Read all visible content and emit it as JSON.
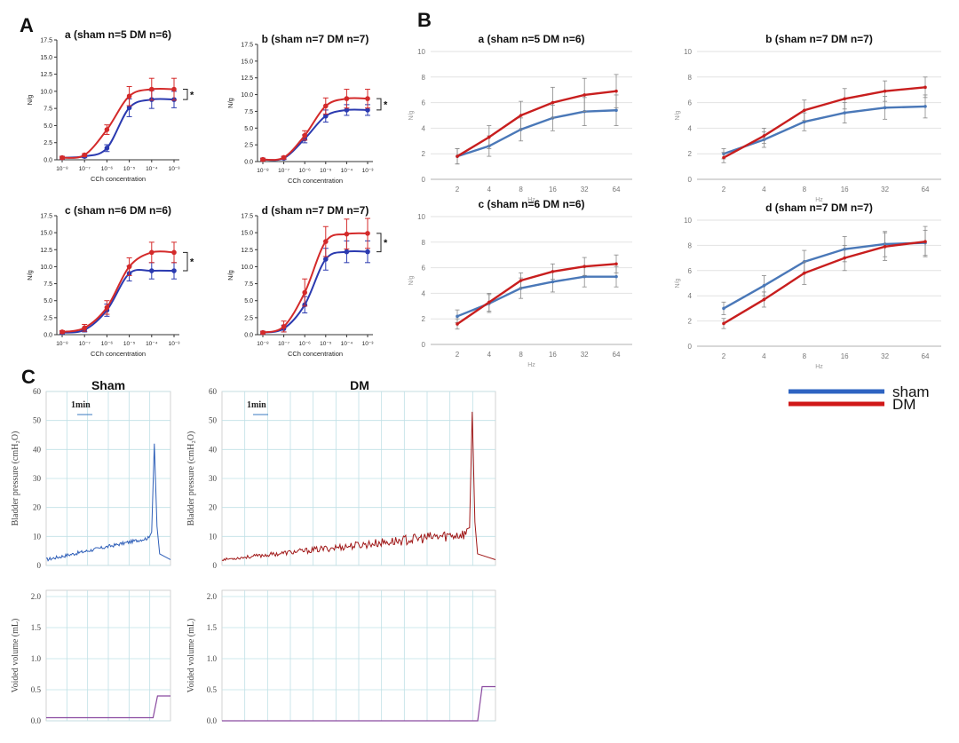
{
  "panel_letters": [
    "A",
    "B",
    "C"
  ],
  "colors": {
    "sham": "#2b3ab0",
    "dm": "#d42a2a",
    "sham_B": "#4a78b8",
    "dm_B": "#c81e1e",
    "trace_sham": "#2f5fb8",
    "trace_dm": "#a01818",
    "grid_C": "#bfe0e6"
  },
  "chart_data": [
    {
      "type": "line",
      "panel": "A",
      "id": "a",
      "title": "a  (sham n=5 DM n=6)",
      "xlabel": "CCh concentration",
      "ylabel": "N/g",
      "categories": [
        "10⁻⁸",
        "10⁻⁷",
        "10⁻⁶",
        "10⁻⁵",
        "10⁻⁴",
        "10⁻³"
      ],
      "ylim": [
        0,
        17.5
      ],
      "yticks": [
        "0.0",
        "2.5",
        "5.0",
        "7.5",
        "10.0",
        "12.5",
        "15.0",
        "17.5"
      ],
      "series": [
        {
          "name": "sham",
          "values": [
            0.3,
            0.5,
            1.7,
            7.6,
            8.8,
            8.8
          ],
          "err": [
            0.2,
            0.2,
            0.5,
            1.3,
            1.3,
            1.2
          ]
        },
        {
          "name": "DM",
          "values": [
            0.3,
            0.7,
            4.4,
            9.3,
            10.3,
            10.3
          ],
          "err": [
            0.2,
            0.2,
            0.7,
            1.4,
            1.6,
            1.6
          ]
        }
      ],
      "annotation": "*"
    },
    {
      "type": "line",
      "panel": "A",
      "id": "b",
      "title": "b (sham n=7 DM n=7)",
      "xlabel": "CCh concentration",
      "ylabel": "N/g",
      "categories": [
        "10⁻⁸",
        "10⁻⁷",
        "10⁻⁶",
        "10⁻⁵",
        "10⁻⁴",
        "10⁻³"
      ],
      "ylim": [
        0,
        17.5
      ],
      "yticks": [
        "0.0",
        "2.5",
        "5.0",
        "7.5",
        "10.0",
        "12.5",
        "15.0",
        "17.5"
      ],
      "series": [
        {
          "name": "sham",
          "values": [
            0.3,
            0.5,
            3.4,
            6.8,
            7.7,
            7.7
          ],
          "err": [
            0.2,
            0.2,
            0.6,
            0.9,
            0.8,
            0.8
          ]
        },
        {
          "name": "DM",
          "values": [
            0.3,
            0.6,
            3.9,
            8.3,
            9.4,
            9.4
          ],
          "err": [
            0.2,
            0.2,
            0.7,
            1.2,
            1.4,
            1.4
          ]
        }
      ],
      "annotation": "*"
    },
    {
      "type": "line",
      "panel": "A",
      "id": "c",
      "title": "c  (sham n=6 DM n=6)",
      "xlabel": "CCh concentration",
      "ylabel": "N/g",
      "categories": [
        "10⁻⁸",
        "10⁻⁷",
        "10⁻⁶",
        "10⁻⁵",
        "10⁻⁴",
        "10⁻³"
      ],
      "ylim": [
        0,
        17.5
      ],
      "yticks": [
        "0.0",
        "2.5",
        "5.0",
        "7.5",
        "10.0",
        "12.5",
        "15.0",
        "17.5"
      ],
      "series": [
        {
          "name": "sham",
          "values": [
            0.3,
            0.7,
            3.6,
            9.0,
            9.4,
            9.4
          ],
          "err": [
            0.2,
            0.3,
            0.9,
            1.1,
            1.2,
            1.2
          ]
        },
        {
          "name": "DM",
          "values": [
            0.4,
            1.0,
            4.0,
            10.0,
            12.1,
            12.1
          ],
          "err": [
            0.2,
            0.5,
            1.0,
            1.3,
            1.5,
            1.5
          ]
        }
      ],
      "annotation": "*"
    },
    {
      "type": "line",
      "panel": "A",
      "id": "d",
      "title": "d (sham n=7 DM n=7)",
      "xlabel": "CCh concentration",
      "ylabel": "N/g",
      "categories": [
        "10⁻⁸",
        "10⁻⁷",
        "10⁻⁶",
        "10⁻⁵",
        "10⁻⁴",
        "10⁻³"
      ],
      "ylim": [
        0,
        17.5
      ],
      "yticks": [
        "0.0",
        "2.5",
        "5.0",
        "7.5",
        "10.0",
        "12.5",
        "15.0",
        "17.5"
      ],
      "series": [
        {
          "name": "sham",
          "values": [
            0.3,
            0.9,
            4.4,
            11.1,
            12.2,
            12.2
          ],
          "err": [
            0.2,
            0.5,
            1.2,
            1.6,
            1.6,
            1.6
          ]
        },
        {
          "name": "DM",
          "values": [
            0.3,
            1.2,
            6.2,
            13.7,
            14.8,
            14.9
          ],
          "err": [
            0.2,
            0.8,
            2.0,
            2.2,
            2.2,
            2.2
          ]
        }
      ],
      "annotation": "*"
    },
    {
      "type": "line",
      "panel": "B",
      "id": "a",
      "title": "a (sham n=5 DM n=6)",
      "xlabel": "Hz",
      "ylabel": "N/g",
      "categories": [
        "2",
        "4",
        "8",
        "16",
        "32",
        "64"
      ],
      "ylim": [
        0,
        10
      ],
      "yticks": [
        "0",
        "2",
        "4",
        "6",
        "8",
        "10"
      ],
      "series": [
        {
          "name": "sham",
          "values": [
            1.8,
            2.6,
            3.9,
            4.8,
            5.3,
            5.4
          ],
          "err": [
            0.6,
            0.8,
            0.9,
            1.0,
            1.1,
            1.2
          ]
        },
        {
          "name": "DM",
          "values": [
            1.8,
            3.3,
            5.0,
            6.0,
            6.6,
            6.9
          ],
          "err": [
            0.6,
            0.9,
            1.1,
            1.2,
            1.3,
            1.3
          ]
        }
      ]
    },
    {
      "type": "line",
      "panel": "B",
      "id": "b",
      "title": "b (sham n=7 DM n=7)",
      "xlabel": "Hz",
      "ylabel": "N/g",
      "categories": [
        "2",
        "4",
        "8",
        "16",
        "32",
        "64"
      ],
      "ylim": [
        0,
        10
      ],
      "yticks": [
        "0",
        "2",
        "4",
        "6",
        "8",
        "10"
      ],
      "series": [
        {
          "name": "sham",
          "values": [
            2.0,
            3.1,
            4.5,
            5.2,
            5.6,
            5.7
          ],
          "err": [
            0.4,
            0.6,
            0.7,
            0.8,
            0.9,
            0.9
          ]
        },
        {
          "name": "DM",
          "values": [
            1.7,
            3.4,
            5.4,
            6.3,
            6.9,
            7.2
          ],
          "err": [
            0.4,
            0.6,
            0.8,
            0.8,
            0.8,
            0.8
          ]
        }
      ]
    },
    {
      "type": "line",
      "panel": "B",
      "id": "c",
      "title": "c (sham n=6 DM n=6)",
      "xlabel": "Hz",
      "ylabel": "N/g",
      "categories": [
        "2",
        "4",
        "8",
        "16",
        "32",
        "64"
      ],
      "ylim": [
        0,
        10
      ],
      "yticks": [
        "0",
        "2",
        "4",
        "6",
        "8",
        "10"
      ],
      "series": [
        {
          "name": "sham",
          "values": [
            2.2,
            3.2,
            4.4,
            4.9,
            5.3,
            5.3
          ],
          "err": [
            0.5,
            0.7,
            0.8,
            0.8,
            0.8,
            0.8
          ]
        },
        {
          "name": "DM",
          "values": [
            1.6,
            3.3,
            5.0,
            5.7,
            6.1,
            6.3
          ],
          "err": [
            0.4,
            0.7,
            0.6,
            0.6,
            0.7,
            0.7
          ]
        }
      ]
    },
    {
      "type": "line",
      "panel": "B",
      "id": "d",
      "title": "d (sham n=7 DM n=7)",
      "xlabel": "Hz",
      "ylabel": "N/g",
      "categories": [
        "2",
        "4",
        "8",
        "16",
        "32",
        "64"
      ],
      "ylim": [
        0,
        10
      ],
      "yticks": [
        "0",
        "2",
        "4",
        "6",
        "8",
        "10"
      ],
      "series": [
        {
          "name": "sham",
          "values": [
            3.0,
            4.8,
            6.7,
            7.7,
            8.1,
            8.2
          ],
          "err": [
            0.5,
            0.8,
            0.9,
            1.0,
            1.0,
            1.0
          ]
        },
        {
          "name": "DM",
          "values": [
            1.8,
            3.7,
            5.8,
            7.0,
            7.9,
            8.3
          ],
          "err": [
            0.4,
            0.6,
            0.9,
            1.0,
            1.1,
            1.2
          ]
        }
      ]
    },
    {
      "type": "line",
      "panel": "C",
      "id": "sham",
      "title": "Sham",
      "scale_bar_label": "1min",
      "top": {
        "ylabel": "Bladder pressure (cmH₂O)",
        "ylim": [
          0,
          60
        ],
        "yticks": [
          "0",
          "10",
          "20",
          "30",
          "40",
          "50",
          "60"
        ],
        "baseline": [
          2,
          9.5
        ],
        "peak": 42
      },
      "bottom": {
        "ylabel": "Voided volume (mL)",
        "ylim": [
          0,
          2.1
        ],
        "yticks": [
          "0.0",
          "0.5",
          "1.0",
          "1.5",
          "2.0"
        ],
        "baseline": 0.05,
        "voided": 0.4
      }
    },
    {
      "type": "line",
      "panel": "C",
      "id": "dm",
      "title": "DM",
      "scale_bar_label": "1min",
      "top": {
        "ylabel": "Bladder pressure (cmH₂O)",
        "ylim": [
          0,
          60
        ],
        "yticks": [
          "0",
          "10",
          "20",
          "30",
          "40",
          "50",
          "60"
        ],
        "baseline": [
          2,
          11
        ],
        "peak": 53
      },
      "bottom": {
        "ylabel": "Voided volume (mL)",
        "ylim": [
          0,
          2.1
        ],
        "yticks": [
          "0.0",
          "0.5",
          "1.0",
          "1.5",
          "2.0"
        ],
        "baseline": 0.0,
        "voided": 0.55
      }
    }
  ],
  "legend": [
    {
      "label": "sham",
      "color": "#2e64c2"
    },
    {
      "label": "DM",
      "color": "#d01818"
    }
  ]
}
